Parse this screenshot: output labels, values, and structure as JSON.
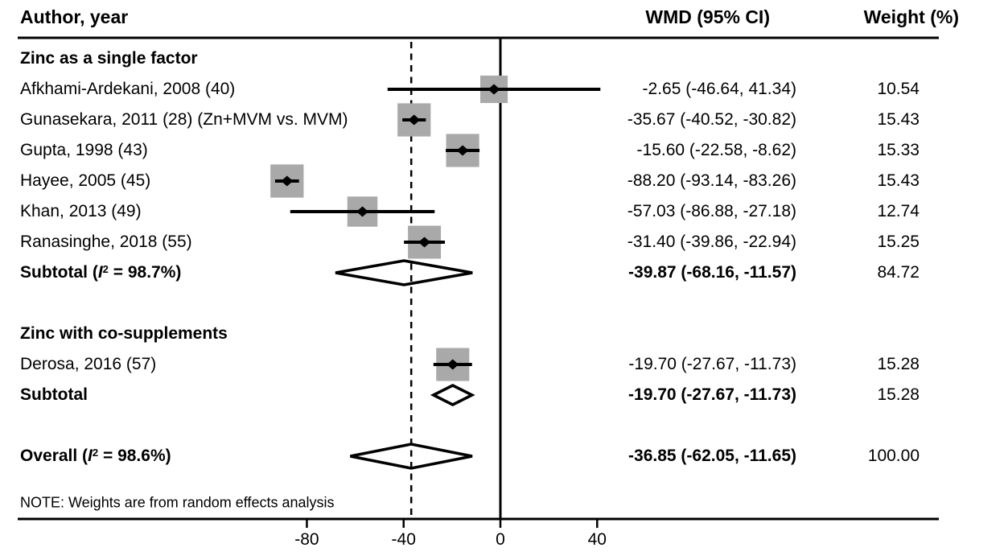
{
  "header": {
    "author_col": "Author, year",
    "wmd_col": "WMD (95% CI)",
    "weight_col": "Weight (%)"
  },
  "note": "NOTE: Weights are from random effects analysis",
  "colors": {
    "square": "#a9a9a9",
    "line": "#000000",
    "text": "#000000",
    "background": "#ffffff"
  },
  "chart_data": {
    "type": "forest",
    "effect_measure": "WMD",
    "x_ticks": [
      -80,
      -40,
      0,
      40
    ],
    "x_tick_labels": [
      "-80",
      "-40",
      "0",
      "40"
    ],
    "zero_line": 0,
    "overall_dashed_line": -36.85,
    "rows": [
      {
        "kind": "group",
        "label": "Zinc as a single factor"
      },
      {
        "kind": "study",
        "label": "Afkhami-Ardekani, 2008 (40)",
        "est": -2.65,
        "lo": -46.64,
        "hi": 41.34,
        "wmd_text": "-2.65 (-46.64, 41.34)",
        "weight": 10.54,
        "weight_text": "10.54"
      },
      {
        "kind": "study",
        "label": "Gunasekara, 2011 (28) (Zn+MVM vs. MVM)",
        "est": -35.67,
        "lo": -40.52,
        "hi": -30.82,
        "wmd_text": "-35.67 (-40.52, -30.82)",
        "weight": 15.43,
        "weight_text": "15.43"
      },
      {
        "kind": "study",
        "label": "Gupta, 1998 (43)",
        "est": -15.6,
        "lo": -22.58,
        "hi": -8.62,
        "wmd_text": "-15.60 (-22.58, -8.62)",
        "weight": 15.33,
        "weight_text": "15.33"
      },
      {
        "kind": "study",
        "label": "Hayee, 2005 (45)",
        "est": -88.2,
        "lo": -93.14,
        "hi": -83.26,
        "wmd_text": "-88.20 (-93.14, -83.26)",
        "weight": 15.43,
        "weight_text": "15.43"
      },
      {
        "kind": "study",
        "label": "Khan, 2013 (49)",
        "est": -57.03,
        "lo": -86.88,
        "hi": -27.18,
        "wmd_text": "-57.03 (-86.88, -27.18)",
        "weight": 12.74,
        "weight_text": "12.74"
      },
      {
        "kind": "study",
        "label": "Ranasinghe, 2018 (55)",
        "est": -31.4,
        "lo": -39.86,
        "hi": -22.94,
        "wmd_text": "-31.40 (-39.86, -22.94)",
        "weight": 15.25,
        "weight_text": "15.25"
      },
      {
        "kind": "subtotal",
        "label": "Subtotal",
        "i2": "98.7%",
        "est": -39.87,
        "lo": -68.16,
        "hi": -11.57,
        "wmd_text": "-39.87 (-68.16, -11.57)",
        "weight_text": "84.72"
      },
      {
        "kind": "spacer"
      },
      {
        "kind": "group",
        "label": "Zinc with co-supplements"
      },
      {
        "kind": "study",
        "label": "Derosa, 2016 (57)",
        "est": -19.7,
        "lo": -27.67,
        "hi": -11.73,
        "wmd_text": "-19.70 (-27.67, -11.73)",
        "weight": 15.28,
        "weight_text": "15.28"
      },
      {
        "kind": "subtotal",
        "label": "Subtotal",
        "i2": null,
        "est": -19.7,
        "lo": -27.67,
        "hi": -11.73,
        "wmd_text": "-19.70 (-27.67, -11.73)",
        "weight_text": "15.28"
      },
      {
        "kind": "spacer"
      },
      {
        "kind": "overall",
        "label": "Overall",
        "i2": "98.6%",
        "est": -36.85,
        "lo": -62.05,
        "hi": -11.65,
        "wmd_text": "-36.85 (-62.05, -11.65)",
        "weight_text": "100.00"
      }
    ]
  }
}
